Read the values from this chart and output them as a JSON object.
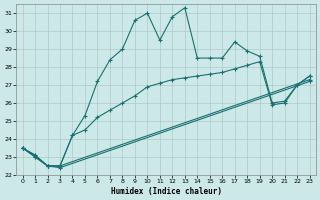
{
  "xlabel": "Humidex (Indice chaleur)",
  "bg_color": "#cce8e8",
  "grid_color": "#b0c8c8",
  "line_color": "#1a7070",
  "xlim": [
    -0.5,
    23.5
  ],
  "ylim": [
    22,
    31.5
  ],
  "yticks": [
    22,
    23,
    24,
    25,
    26,
    27,
    28,
    29,
    30,
    31
  ],
  "xticks": [
    0,
    1,
    2,
    3,
    4,
    5,
    6,
    7,
    8,
    9,
    10,
    11,
    12,
    13,
    14,
    15,
    16,
    17,
    18,
    19,
    20,
    21,
    22,
    23
  ],
  "line1_x": [
    0,
    1,
    2,
    3,
    4,
    5,
    6,
    7,
    8,
    9,
    10,
    11,
    12,
    13,
    14,
    15,
    16,
    17,
    18,
    19,
    20,
    21,
    22,
    23
  ],
  "line1_y": [
    23.5,
    23.1,
    22.5,
    22.5,
    24.2,
    25.3,
    27.2,
    28.4,
    29.0,
    30.6,
    31.0,
    29.5,
    30.8,
    31.3,
    28.5,
    28.5,
    28.5,
    29.4,
    28.9,
    28.6,
    26.0,
    26.1,
    27.0,
    27.5
  ],
  "line2_x": [
    0,
    1,
    2,
    3,
    4,
    5,
    6,
    7,
    8,
    9,
    10,
    11,
    12,
    13,
    14,
    15,
    16,
    17,
    18,
    19,
    20,
    21,
    22,
    23
  ],
  "line2_y": [
    23.5,
    23.1,
    22.5,
    22.5,
    24.2,
    24.5,
    25.2,
    25.6,
    26.0,
    26.4,
    26.9,
    27.1,
    27.3,
    27.4,
    27.5,
    27.6,
    27.7,
    27.9,
    28.1,
    28.3,
    25.9,
    26.0,
    27.0,
    27.5
  ],
  "line3_x": [
    0,
    1,
    2,
    3,
    23
  ],
  "line3_y": [
    23.5,
    23.0,
    22.5,
    22.5,
    27.3
  ],
  "line4_x": [
    0,
    1,
    2,
    3,
    23
  ],
  "line4_y": [
    23.5,
    23.0,
    22.5,
    22.4,
    27.2
  ]
}
